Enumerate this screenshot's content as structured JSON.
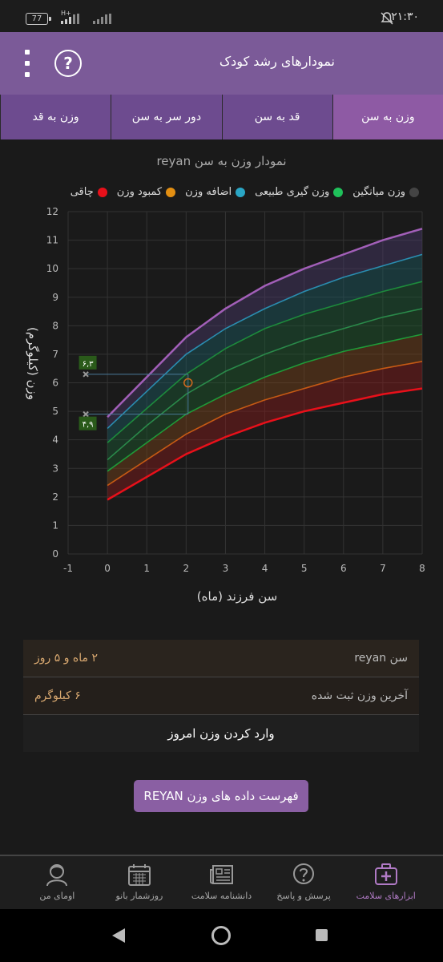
{
  "status": {
    "time": "۲۱:۳۰",
    "battery": "77",
    "network": "H+"
  },
  "app": {
    "title": "نمودارهای رشد کودک"
  },
  "tabs": [
    {
      "label": "وزن به سن",
      "active": true
    },
    {
      "label": "قد به سن",
      "active": false
    },
    {
      "label": "دور سر به سن",
      "active": false
    },
    {
      "label": "وزن به قد",
      "active": false
    }
  ],
  "chart_title": "نمودار وزن به سن reyan",
  "legend": [
    {
      "label": "چاقی",
      "color": "#e8101a"
    },
    {
      "label": "کمبود وزن",
      "color": "#e38f12"
    },
    {
      "label": "اضافه وزن",
      "color": "#2aa6c5"
    },
    {
      "label": "وزن گیری طبیعی",
      "color": "#1fc15a"
    },
    {
      "label": "وزن میانگین",
      "color": "#444444"
    }
  ],
  "chart_data": {
    "type": "area",
    "xlabel": "سن فرزند (ماه)",
    "ylabel": "وزن (کیلوگرم)",
    "xlim": [
      -1,
      8
    ],
    "ylim": [
      0,
      12
    ],
    "xticks": [
      "-1",
      "0",
      "1",
      "2",
      "3",
      "4",
      "5",
      "6",
      "7",
      "8"
    ],
    "yticks": [
      "0",
      "1",
      "2",
      "3",
      "4",
      "5",
      "6",
      "7",
      "8",
      "9",
      "10",
      "11",
      "12"
    ],
    "x": [
      0,
      1,
      2,
      3,
      4,
      5,
      6,
      7,
      8
    ],
    "series": [
      {
        "values": [
          1.9,
          2.7,
          3.5,
          4.1,
          4.6,
          5.0,
          5.3,
          5.6,
          5.8
        ],
        "color": "#e8101a"
      },
      {
        "values": [
          2.4,
          3.3,
          4.2,
          4.9,
          5.4,
          5.8,
          6.2,
          6.5,
          6.75
        ],
        "color": "#c65a14"
      },
      {
        "values": [
          2.9,
          3.9,
          4.9,
          5.6,
          6.2,
          6.7,
          7.1,
          7.4,
          7.7
        ],
        "color": "#1f9a38"
      },
      {
        "values": [
          3.3,
          4.5,
          5.6,
          6.4,
          7.0,
          7.5,
          7.9,
          8.3,
          8.6
        ],
        "color": "#2a8a4a"
      },
      {
        "values": [
          3.9,
          5.1,
          6.3,
          7.2,
          7.9,
          8.4,
          8.8,
          9.2,
          9.55
        ],
        "color": "#1d8a3c"
      },
      {
        "values": [
          4.4,
          5.7,
          7.0,
          7.9,
          8.6,
          9.2,
          9.7,
          10.1,
          10.5
        ],
        "color": "#2a8db0"
      },
      {
        "values": [
          4.8,
          6.2,
          7.6,
          8.6,
          9.4,
          10.0,
          10.5,
          11.0,
          11.4
        ],
        "color": "#a25fb8"
      }
    ],
    "point": {
      "x": 2.05,
      "y": 6.0
    },
    "birth_weight": 4.9,
    "current_weight": 6.3,
    "marker_labels": [
      "۶,۳",
      "۴,۹"
    ]
  },
  "info": {
    "age_label": "سن reyan",
    "age_value": "۲ ماه و ۵ روز",
    "weight_label": "آخرین وزن ثبت شده",
    "weight_value": "۶ کیلوگرم",
    "enter_label": "وارد کردن وزن امروز"
  },
  "list_button": "فهرست داده های وزن REYAN",
  "bottom_nav": [
    {
      "label": "ابزارهای سلامت",
      "icon": "medical-kit-icon",
      "active": true
    },
    {
      "label": "پرسش و پاسخ",
      "icon": "question-bubble-icon",
      "active": false
    },
    {
      "label": "دانشنامه سلامت",
      "icon": "newspaper-icon",
      "active": false
    },
    {
      "label": "روزشمار بانو",
      "icon": "calendar-icon",
      "active": false
    },
    {
      "label": "اومای من",
      "icon": "woman-avatar-icon",
      "active": false
    }
  ]
}
